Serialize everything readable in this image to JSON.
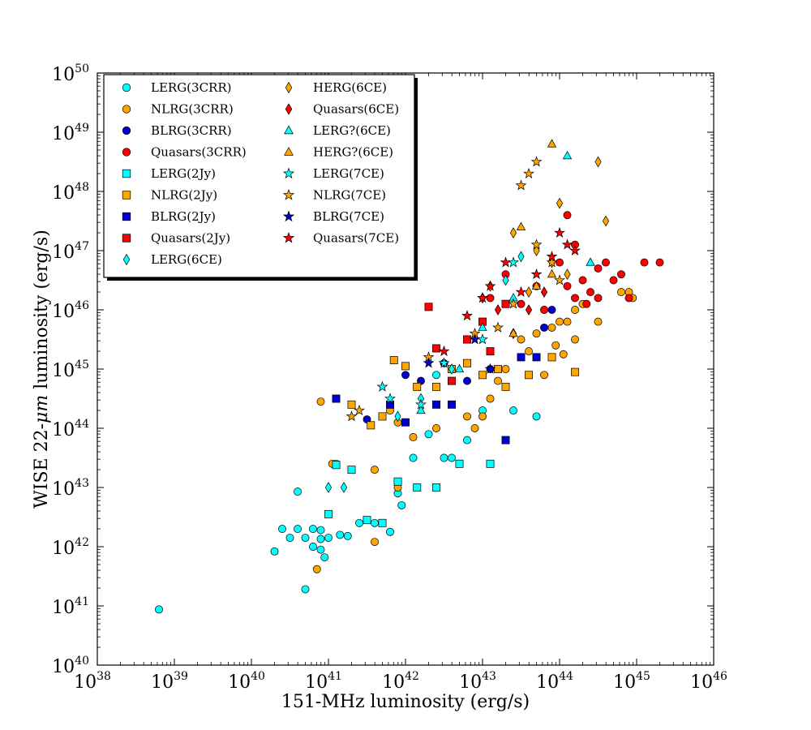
{
  "chart_data": {
    "type": "scatter",
    "title": "",
    "xlabel": "151-MHz luminosity (erg/s)",
    "ylabel_parts": [
      "WISE 22-",
      "μm",
      " luminosity (erg/s)"
    ],
    "x_scale": "log",
    "y_scale": "log",
    "xlim": [
      1e+38,
      1e+46
    ],
    "ylim": [
      1e+40,
      1e+50
    ],
    "x_ticks": [
      {
        "base": "10",
        "exp": "38"
      },
      {
        "base": "10",
        "exp": "39"
      },
      {
        "base": "10",
        "exp": "40"
      },
      {
        "base": "10",
        "exp": "41"
      },
      {
        "base": "10",
        "exp": "42"
      },
      {
        "base": "10",
        "exp": "43"
      },
      {
        "base": "10",
        "exp": "44"
      },
      {
        "base": "10",
        "exp": "45"
      },
      {
        "base": "10",
        "exp": "46"
      }
    ],
    "y_ticks": [
      {
        "base": "10",
        "exp": "40"
      },
      {
        "base": "10",
        "exp": "41"
      },
      {
        "base": "10",
        "exp": "42"
      },
      {
        "base": "10",
        "exp": "43"
      },
      {
        "base": "10",
        "exp": "44"
      },
      {
        "base": "10",
        "exp": "45"
      },
      {
        "base": "10",
        "exp": "46"
      },
      {
        "base": "10",
        "exp": "47"
      },
      {
        "base": "10",
        "exp": "48"
      },
      {
        "base": "10",
        "exp": "49"
      },
      {
        "base": "10",
        "exp": "50"
      }
    ],
    "grid": false,
    "legend_position": "top-left",
    "series": [
      {
        "name": "LERG(3CRR)",
        "marker": "circle",
        "color": "#00ffff",
        "log_points": [
          [
            38.8,
            40.94
          ],
          [
            40.3,
            41.92
          ],
          [
            40.4,
            42.3
          ],
          [
            40.5,
            42.15
          ],
          [
            40.6,
            42.93
          ],
          [
            40.6,
            42.3
          ],
          [
            40.7,
            42.15
          ],
          [
            40.7,
            41.28
          ],
          [
            40.8,
            42.3
          ],
          [
            40.8,
            42.0
          ],
          [
            40.9,
            41.95
          ],
          [
            40.9,
            42.13
          ],
          [
            40.9,
            42.28
          ],
          [
            40.95,
            41.82
          ],
          [
            41.0,
            42.15
          ],
          [
            41.1,
            43.4
          ],
          [
            41.15,
            42.2
          ],
          [
            41.25,
            42.18
          ],
          [
            41.4,
            42.4
          ],
          [
            41.6,
            42.4
          ],
          [
            41.8,
            42.25
          ],
          [
            41.9,
            42.9
          ],
          [
            41.95,
            42.7
          ],
          [
            42.1,
            43.5
          ],
          [
            42.3,
            43.9
          ],
          [
            42.4,
            44.9
          ],
          [
            42.5,
            43.5
          ],
          [
            42.6,
            43.5
          ],
          [
            42.8,
            43.8
          ],
          [
            43.0,
            44.3
          ],
          [
            43.4,
            44.3
          ],
          [
            43.7,
            44.2
          ]
        ]
      },
      {
        "name": "NLRG(3CRR)",
        "marker": "circle",
        "color": "#ffa500",
        "log_points": [
          [
            40.85,
            41.62
          ],
          [
            40.9,
            44.45
          ],
          [
            41.05,
            43.4
          ],
          [
            41.6,
            42.08
          ],
          [
            41.6,
            43.3
          ],
          [
            41.9,
            43.0
          ],
          [
            41.8,
            44.3
          ],
          [
            41.9,
            44.1
          ],
          [
            42.1,
            43.85
          ],
          [
            42.4,
            44.0
          ],
          [
            42.8,
            44.2
          ],
          [
            42.9,
            44.0
          ],
          [
            43.0,
            44.2
          ],
          [
            43.1,
            44.5
          ],
          [
            43.2,
            44.8
          ],
          [
            43.3,
            45.0
          ],
          [
            43.5,
            45.5
          ],
          [
            43.6,
            45.3
          ],
          [
            43.7,
            45.6
          ],
          [
            43.9,
            45.7
          ],
          [
            44.0,
            45.8
          ],
          [
            44.1,
            45.8
          ],
          [
            44.2,
            46.0
          ],
          [
            44.3,
            46.1
          ],
          [
            44.5,
            45.8
          ],
          [
            44.8,
            46.3
          ],
          [
            44.9,
            46.3
          ],
          [
            44.95,
            46.2
          ],
          [
            43.8,
            44.9
          ],
          [
            43.95,
            45.4
          ],
          [
            44.05,
            45.25
          ],
          [
            44.2,
            45.5
          ]
        ]
      },
      {
        "name": "BLRG(3CRR)",
        "marker": "circle",
        "color": "#0000cc",
        "log_points": [
          [
            41.5,
            44.15
          ],
          [
            42.0,
            44.9
          ],
          [
            42.2,
            44.8
          ],
          [
            42.5,
            45.1
          ],
          [
            42.8,
            44.8
          ],
          [
            43.1,
            45.0
          ],
          [
            43.8,
            45.7
          ],
          [
            43.9,
            46.0
          ]
        ]
      },
      {
        "name": "Quasars(3CRR)",
        "marker": "circle",
        "color": "#ff0000",
        "log_points": [
          [
            43.1,
            46.2
          ],
          [
            43.3,
            46.6
          ],
          [
            43.5,
            46.1
          ],
          [
            43.7,
            46.4
          ],
          [
            43.8,
            46.0
          ],
          [
            44.0,
            46.8
          ],
          [
            44.1,
            46.4
          ],
          [
            44.1,
            47.6
          ],
          [
            44.2,
            46.2
          ],
          [
            44.2,
            47.1
          ],
          [
            44.3,
            46.5
          ],
          [
            44.35,
            46.1
          ],
          [
            44.4,
            46.3
          ],
          [
            44.5,
            46.7
          ],
          [
            44.5,
            46.2
          ],
          [
            44.6,
            46.8
          ],
          [
            44.7,
            46.5
          ],
          [
            44.8,
            46.6
          ],
          [
            44.9,
            46.2
          ],
          [
            45.1,
            46.8
          ],
          [
            45.3,
            46.8
          ]
        ]
      },
      {
        "name": "LERG(2Jy)",
        "marker": "square",
        "color": "#00ffff",
        "log_points": [
          [
            41.0,
            42.55
          ],
          [
            41.1,
            43.38
          ],
          [
            41.3,
            43.3
          ],
          [
            41.5,
            42.45
          ],
          [
            41.7,
            42.4
          ],
          [
            41.9,
            43.1
          ],
          [
            42.15,
            43.0
          ],
          [
            42.4,
            43.0
          ],
          [
            42.7,
            43.4
          ],
          [
            43.1,
            43.4
          ]
        ]
      },
      {
        "name": "NLRG(2Jy)",
        "marker": "square",
        "color": "#ffa500",
        "log_points": [
          [
            41.3,
            44.4
          ],
          [
            41.55,
            44.05
          ],
          [
            41.7,
            44.2
          ],
          [
            41.85,
            45.15
          ],
          [
            42.0,
            45.05
          ],
          [
            42.15,
            44.7
          ],
          [
            42.4,
            44.7
          ],
          [
            42.6,
            45.0
          ],
          [
            42.8,
            45.1
          ],
          [
            43.0,
            44.9
          ],
          [
            43.2,
            45.0
          ],
          [
            43.3,
            44.7
          ],
          [
            43.6,
            44.9
          ],
          [
            43.9,
            45.2
          ],
          [
            44.2,
            44.95
          ]
        ]
      },
      {
        "name": "BLRG(2Jy)",
        "marker": "square",
        "color": "#0000cc",
        "log_points": [
          [
            41.1,
            44.5
          ],
          [
            41.8,
            44.4
          ],
          [
            42.0,
            44.1
          ],
          [
            42.4,
            44.4
          ],
          [
            42.6,
            44.4
          ],
          [
            43.3,
            43.8
          ],
          [
            43.5,
            45.2
          ],
          [
            43.7,
            45.2
          ]
        ]
      },
      {
        "name": "Quasars(2Jy)",
        "marker": "square",
        "color": "#ff0000",
        "log_points": [
          [
            42.3,
            46.05
          ],
          [
            42.4,
            45.35
          ],
          [
            42.6,
            44.8
          ],
          [
            42.8,
            45.5
          ],
          [
            43.0,
            45.8
          ],
          [
            43.1,
            45.3
          ],
          [
            43.3,
            46.1
          ]
        ]
      },
      {
        "name": "LERG(6CE)",
        "marker": "diamond",
        "color": "#00ffff",
        "log_points": [
          [
            41.0,
            43.0
          ],
          [
            41.2,
            43.0
          ],
          [
            41.9,
            44.2
          ],
          [
            42.2,
            44.5
          ],
          [
            42.6,
            45.0
          ],
          [
            43.3,
            46.5
          ],
          [
            43.5,
            46.9
          ]
        ]
      },
      {
        "name": "HERG(6CE)",
        "marker": "diamond",
        "color": "#ffa500",
        "log_points": [
          [
            43.1,
            46.4
          ],
          [
            43.4,
            47.3
          ],
          [
            43.6,
            46.3
          ],
          [
            43.7,
            47.0
          ],
          [
            43.9,
            46.8
          ],
          [
            44.0,
            47.8
          ],
          [
            44.1,
            46.6
          ],
          [
            44.5,
            48.5
          ],
          [
            44.6,
            47.5
          ]
        ]
      },
      {
        "name": "Quasars(6CE)",
        "marker": "diamond",
        "color": "#ff0000",
        "log_points": [
          [
            43.0,
            46.2
          ],
          [
            43.2,
            46.0
          ],
          [
            43.4,
            45.6
          ],
          [
            43.6,
            46.0
          ],
          [
            43.8,
            46.3
          ]
        ]
      },
      {
        "name": "LERG?(6CE)",
        "marker": "triangle",
        "color": "#00ffff",
        "log_points": [
          [
            42.2,
            44.3
          ],
          [
            42.7,
            45.0
          ],
          [
            43.0,
            45.7
          ],
          [
            43.4,
            46.2
          ],
          [
            44.1,
            48.6
          ],
          [
            44.4,
            46.8
          ]
        ]
      },
      {
        "name": "HERG?(6CE)",
        "marker": "triangle",
        "color": "#ffa500",
        "log_points": [
          [
            43.5,
            47.4
          ],
          [
            43.9,
            48.8
          ],
          [
            43.4,
            45.6
          ],
          [
            43.7,
            46.4
          ],
          [
            43.9,
            46.6
          ]
        ]
      },
      {
        "name": "LERG(7CE)",
        "marker": "star",
        "color": "#00ffff",
        "log_points": [
          [
            41.7,
            44.7
          ],
          [
            41.8,
            44.5
          ],
          [
            42.2,
            44.4
          ],
          [
            42.5,
            45.1
          ],
          [
            43.0,
            45.5
          ],
          [
            43.4,
            46.8
          ]
        ]
      },
      {
        "name": "NLRG(7CE)",
        "marker": "star",
        "color": "#ffa500",
        "log_points": [
          [
            41.3,
            44.2
          ],
          [
            41.4,
            44.3
          ],
          [
            42.3,
            45.2
          ],
          [
            42.9,
            45.6
          ],
          [
            43.2,
            45.7
          ],
          [
            43.4,
            46.1
          ],
          [
            43.5,
            48.1
          ],
          [
            43.6,
            48.3
          ],
          [
            43.7,
            48.5
          ],
          [
            43.7,
            47.1
          ],
          [
            43.9,
            46.8
          ],
          [
            44.0,
            46.5
          ]
        ]
      },
      {
        "name": "BLRG(7CE)",
        "marker": "star",
        "color": "#0000cc",
        "log_points": [
          [
            42.3,
            45.1
          ],
          [
            42.9,
            45.5
          ],
          [
            43.1,
            45.0
          ]
        ]
      },
      {
        "name": "Quasars(7CE)",
        "marker": "star",
        "color": "#ff0000",
        "log_points": [
          [
            42.5,
            45.3
          ],
          [
            42.8,
            45.9
          ],
          [
            43.0,
            46.2
          ],
          [
            43.1,
            46.4
          ],
          [
            43.3,
            46.8
          ],
          [
            43.5,
            46.3
          ],
          [
            43.7,
            46.6
          ],
          [
            43.9,
            46.9
          ],
          [
            44.0,
            47.3
          ],
          [
            44.1,
            47.1
          ],
          [
            44.2,
            47.0
          ]
        ]
      }
    ]
  }
}
